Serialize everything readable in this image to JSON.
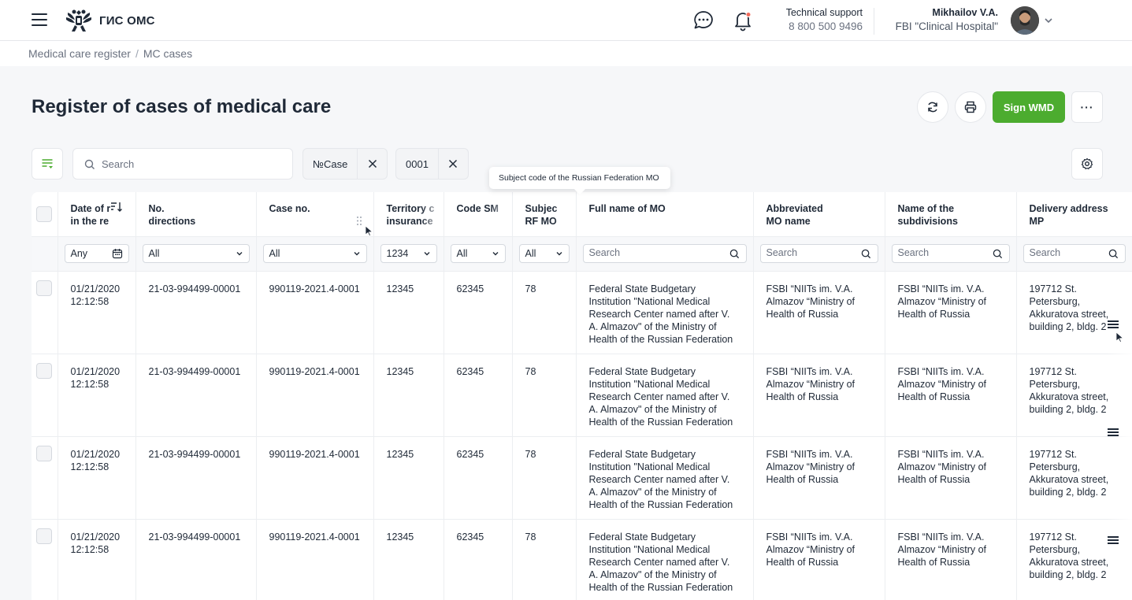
{
  "header": {
    "logo_text": "ГИС ОМС",
    "support_title": "Technical support",
    "support_phone": "8 800 500 9496",
    "user_name": "Mikhailov V.A.",
    "user_org": "FBI \"Clinical Hospital\""
  },
  "breadcrumb": [
    "Medical care register",
    "MC cases"
  ],
  "page": {
    "title": "Register of cases of medical care",
    "sign_label": "Sign WMD",
    "more_label": "···"
  },
  "toolbar": {
    "search_placeholder": "Search",
    "chips": [
      {
        "label": "№Case"
      },
      {
        "label": "0001"
      }
    ]
  },
  "tooltip": "Subject code of the Russian Federation MO",
  "table": {
    "columns": [
      {
        "l1": "Date of r",
        "l2": "in the re"
      },
      {
        "l1": "No.",
        "l2": "directions"
      },
      {
        "l1": "Case no.",
        "l2": ""
      },
      {
        "l1": "Territory c",
        "l2": "insurance"
      },
      {
        "l1": "Code SM",
        "l2": ""
      },
      {
        "l1": "Subjec",
        "l2": "RF MO"
      },
      {
        "l1": "Full name of MO",
        "l2": ""
      },
      {
        "l1": "Abbreviated",
        "l2": "MO name"
      },
      {
        "l1": "Name of the",
        "l2": "subdivisions"
      },
      {
        "l1": "Delivery address",
        "l2": "MP"
      }
    ],
    "filters": {
      "date": "Any",
      "directions": "All",
      "case": "All",
      "territory": "1234",
      "code_sm": "All",
      "subject": "All",
      "search_placeholder": "Search"
    },
    "rows": [
      {
        "date": "01/21/2020",
        "time": "12:12:58",
        "directions": "21-03-994499-00001",
        "case_no": "990119-2021.4-0001",
        "territory": "12345",
        "code_sm": "62345",
        "subject": "78",
        "full_name": "Federal State Budgetary Institution \"National Medical Research Center named after V. A. Almazov\" of the Ministry of Health of the Russian Federation",
        "abbrev": "FSBI “NIITs im. V.A. Almazov “Ministry of Health of Russia",
        "subdivision": "FSBI “NIITs im. V.A. Almazov “Ministry of Health of Russia",
        "addr1": "197712 St.",
        "addr2": "Petersburg,",
        "addr3": "Akkuratova street,",
        "addr4": "building 2, bldg. 2"
      },
      {
        "date": "01/21/2020",
        "time": "12:12:58",
        "directions": "21-03-994499-00001",
        "case_no": "990119-2021.4-0001",
        "territory": "12345",
        "code_sm": "62345",
        "subject": "78",
        "full_name": "Federal State Budgetary Institution \"National Medical Research Center named after V. A. Almazov\" of the Ministry of Health of the Russian Federation",
        "abbrev": "FSBI “NIITs im. V.A. Almazov “Ministry of Health of Russia",
        "subdivision": "FSBI “NIITs im. V.A. Almazov “Ministry of Health of Russia",
        "addr1": "197712 St.",
        "addr2": "Petersburg,",
        "addr3": "Akkuratova street,",
        "addr4": "building 2, bldg. 2"
      },
      {
        "date": "01/21/2020",
        "time": "12:12:58",
        "directions": "21-03-994499-00001",
        "case_no": "990119-2021.4-0001",
        "territory": "12345",
        "code_sm": "62345",
        "subject": "78",
        "full_name": "Federal State Budgetary Institution \"National Medical Research Center named after V. A. Almazov\" of the Ministry of Health of the Russian Federation",
        "abbrev": "FSBI “NIITs im. V.A. Almazov “Ministry of Health of Russia",
        "subdivision": "FSBI “NIITs im. V.A. Almazov “Ministry of Health of Russia",
        "addr1": "197712 St.",
        "addr2": "Petersburg,",
        "addr3": "Akkuratova street,",
        "addr4": "building 2, bldg. 2"
      },
      {
        "date": "01/21/2020",
        "time": "12:12:58",
        "directions": "21-03-994499-00001",
        "case_no": "990119-2021.4-0001",
        "territory": "12345",
        "code_sm": "62345",
        "subject": "78",
        "full_name": "Federal State Budgetary Institution \"National Medical Research Center named after V. A. Almazov\" of the Ministry of Health of the Russian Federation",
        "abbrev": "FSBI “NIITs im. V.A. Almazov “Ministry of Health of Russia",
        "subdivision": "FSBI “NIITs im. V.A. Almazov “Ministry of Health of Russia",
        "addr1": "197712 St.",
        "addr2": "Petersburg,",
        "addr3": "Akkuratova street,",
        "addr4": "building 2, bldg. 2"
      }
    ]
  },
  "colors": {
    "accent": "#4cac2f",
    "text": "#1f2937",
    "muted": "#6b7280",
    "bg": "#f6f7f9"
  },
  "icons": [
    "menu-icon",
    "emblem-icon",
    "chat-icon",
    "bell-icon",
    "chevron-down-icon",
    "refresh-icon",
    "print-icon",
    "filter-icon",
    "search-icon",
    "close-icon",
    "gear-icon",
    "sort-icon",
    "drag-handle-icon",
    "calendar-icon",
    "row-menu-icon"
  ]
}
